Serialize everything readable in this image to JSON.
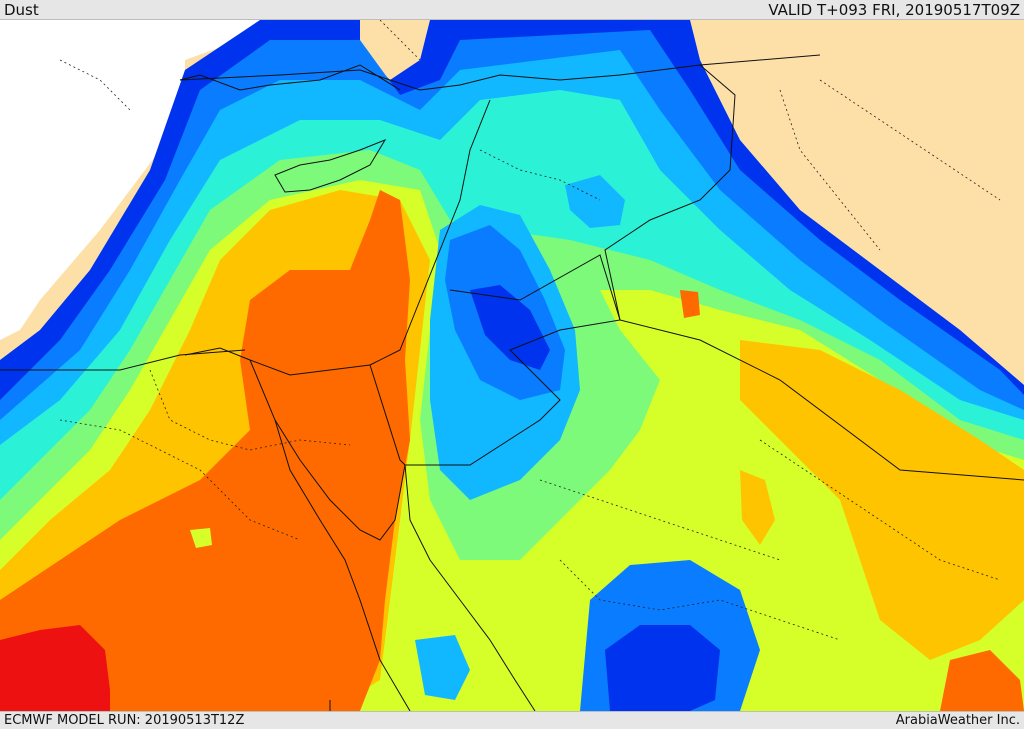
{
  "header": {
    "title": "Dust",
    "valid_time": "VALID T+093 FRI, 20190517T09Z"
  },
  "footer": {
    "model_run": "ECMWF MODEL RUN: 20190513T12Z",
    "credit": "ArabiaWeather Inc."
  },
  "map": {
    "variable": "Dust",
    "palette": {
      "land": "#fde0a8",
      "sea": "#ffffff",
      "level_1": "#0033ee",
      "level_2": "#0a7cff",
      "level_3": "#11b7ff",
      "level_4": "#2bf2d7",
      "level_5": "#7dfa79",
      "level_6": "#d6ff2a",
      "level_7": "#ffc400",
      "level_8": "#ff6a00",
      "level_9": "#ee1111",
      "border": "#111111"
    }
  }
}
